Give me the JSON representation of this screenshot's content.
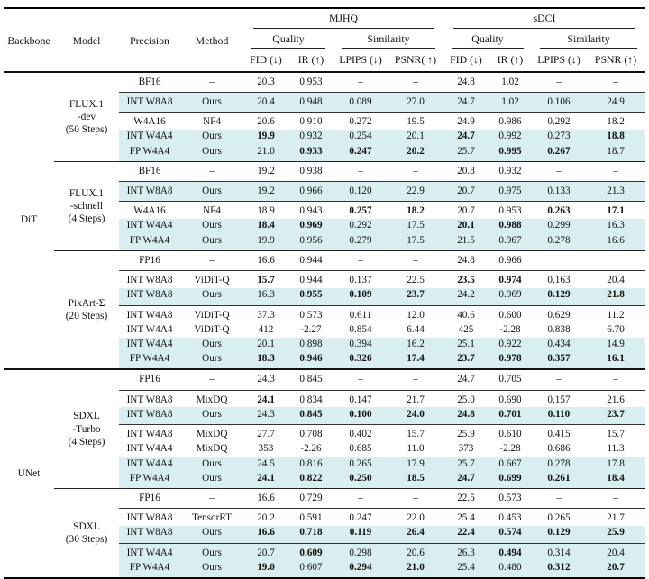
{
  "colors": {
    "row_highlight": "#d9eef0",
    "rule": "#111111",
    "text": "#111111"
  },
  "table": {
    "headers": {
      "backbone": "Backbone",
      "model": "Model",
      "precision": "Precision",
      "method": "Method",
      "group1": "MJHQ",
      "group2": "sDCI",
      "quality": "Quality",
      "similarity": "Similarity",
      "mjhq_metrics": [
        "FID (↓)",
        "IR (↑)",
        "LPIPS (↓)",
        "PSNR( ↑)"
      ],
      "sdci_metrics": [
        "FID (↓)",
        "IR (↑)",
        "LPIPS (↓)",
        "PSNR (↑)"
      ]
    },
    "sections": [
      {
        "backbone": "DiT",
        "models": [
          {
            "name_lines": [
              "FLUX.1",
              "-dev",
              "(50 Steps)"
            ],
            "groups": [
              [
                {
                  "precision": "BF16",
                  "method": "–",
                  "v": [
                    "20.3",
                    "0.953",
                    "–",
                    "–",
                    "24.8",
                    "1.02",
                    "–",
                    "–"
                  ],
                  "b": [],
                  "hl": false
                }
              ],
              [
                {
                  "precision": "INT W8A8",
                  "method": "Ours",
                  "v": [
                    "20.4",
                    "0.948",
                    "0.089",
                    "27.0",
                    "24.7",
                    "1.02",
                    "0.106",
                    "24.9"
                  ],
                  "b": [],
                  "hl": true
                }
              ],
              [
                {
                  "precision": "W4A16",
                  "method": "NF4",
                  "v": [
                    "20.6",
                    "0.910",
                    "0.272",
                    "19.5",
                    "24.9",
                    "0.986",
                    "0.292",
                    "18.2"
                  ],
                  "b": [],
                  "hl": false
                },
                {
                  "precision": "INT W4A4",
                  "method": "Ours",
                  "v": [
                    "19.9",
                    "0.932",
                    "0.254",
                    "20.1",
                    "24.7",
                    "0.992",
                    "0.273",
                    "18.8"
                  ],
                  "b": [
                    0,
                    4,
                    7
                  ],
                  "hl": true
                },
                {
                  "precision": "FP W4A4",
                  "method": "Ours",
                  "v": [
                    "21.0",
                    "0.933",
                    "0.247",
                    "20.2",
                    "25.7",
                    "0.995",
                    "0.267",
                    "18.7"
                  ],
                  "b": [
                    1,
                    2,
                    3,
                    5,
                    6
                  ],
                  "hl": true
                }
              ]
            ]
          },
          {
            "name_lines": [
              "FLUX.1",
              "-schnell",
              "(4 Steps)"
            ],
            "groups": [
              [
                {
                  "precision": "BF16",
                  "method": "–",
                  "v": [
                    "19.2",
                    "0.938",
                    "–",
                    "–",
                    "20.8",
                    "0.932",
                    "–",
                    "–"
                  ],
                  "b": [],
                  "hl": false
                }
              ],
              [
                {
                  "precision": "INT W8A8",
                  "method": "Ours",
                  "v": [
                    "19.2",
                    "0.966",
                    "0.120",
                    "22.9",
                    "20.7",
                    "0.975",
                    "0.133",
                    "21.3"
                  ],
                  "b": [],
                  "hl": true
                }
              ],
              [
                {
                  "precision": "W4A16",
                  "method": "NF4",
                  "v": [
                    "18.9",
                    "0.943",
                    "0.257",
                    "18.2",
                    "20.7",
                    "0.953",
                    "0.263",
                    "17.1"
                  ],
                  "b": [
                    2,
                    3,
                    6,
                    7
                  ],
                  "hl": false
                },
                {
                  "precision": "INT W4A4",
                  "method": "Ours",
                  "v": [
                    "18.4",
                    "0.969",
                    "0.292",
                    "17.5",
                    "20.1",
                    "0.988",
                    "0.299",
                    "16.3"
                  ],
                  "b": [
                    0,
                    1,
                    4,
                    5
                  ],
                  "hl": true
                },
                {
                  "precision": "FP W4A4",
                  "method": "Ours",
                  "v": [
                    "19.9",
                    "0.956",
                    "0.279",
                    "17.5",
                    "21.5",
                    "0.967",
                    "0.278",
                    "16.6"
                  ],
                  "b": [],
                  "hl": true
                }
              ]
            ]
          },
          {
            "name_lines": [
              "PixArt-Σ",
              "(20 Steps)"
            ],
            "groups": [
              [
                {
                  "precision": "FP16",
                  "method": "–",
                  "v": [
                    "16.6",
                    "0.944",
                    "–",
                    "–",
                    "24.8",
                    "0.966",
                    "",
                    ""
                  ],
                  "b": [],
                  "hl": false
                }
              ],
              [
                {
                  "precision": "INT W8A8",
                  "method": "ViDiT-Q",
                  "v": [
                    "15.7",
                    "0.944",
                    "0.137",
                    "22.5",
                    "23.5",
                    "0.974",
                    "0.163",
                    "20.4"
                  ],
                  "b": [
                    0,
                    4,
                    5
                  ],
                  "hl": false
                },
                {
                  "precision": "INT W8A8",
                  "method": "Ours",
                  "v": [
                    "16.3",
                    "0.955",
                    "0.109",
                    "23.7",
                    "24.2",
                    "0.969",
                    "0.129",
                    "21.8"
                  ],
                  "b": [
                    1,
                    2,
                    3,
                    6,
                    7
                  ],
                  "hl": true
                }
              ],
              [
                {
                  "precision": "INT W4A8",
                  "method": "ViDiT-Q",
                  "v": [
                    "37.3",
                    "0.573",
                    "0.611",
                    "12.0",
                    "40.6",
                    "0.600",
                    "0.629",
                    "11.2"
                  ],
                  "b": [],
                  "hl": false
                },
                {
                  "precision": "INT W4A4",
                  "method": "ViDiT-Q",
                  "v": [
                    "412",
                    "-2.27",
                    "0.854",
                    "6.44",
                    "425",
                    "-2.28",
                    "0.838",
                    "6.70"
                  ],
                  "b": [],
                  "hl": false
                },
                {
                  "precision": "INT W4A4",
                  "method": "Ours",
                  "v": [
                    "20.1",
                    "0.898",
                    "0.394",
                    "16.2",
                    "25.1",
                    "0.922",
                    "0.434",
                    "14.9"
                  ],
                  "b": [],
                  "hl": true
                },
                {
                  "precision": "FP W4A4",
                  "method": "Ours",
                  "v": [
                    "18.3",
                    "0.946",
                    "0.326",
                    "17.4",
                    "23.7",
                    "0.978",
                    "0.357",
                    "16.1"
                  ],
                  "b": [
                    0,
                    1,
                    2,
                    3,
                    4,
                    5,
                    6,
                    7
                  ],
                  "hl": true
                }
              ]
            ]
          }
        ]
      },
      {
        "backbone": "UNet",
        "models": [
          {
            "name_lines": [
              "SDXL",
              "-Turbo",
              "(4 Steps)"
            ],
            "groups": [
              [
                {
                  "precision": "FP16",
                  "method": "–",
                  "v": [
                    "24.3",
                    "0.845",
                    "–",
                    "–",
                    "24.7",
                    "0.705",
                    "–",
                    "–"
                  ],
                  "b": [],
                  "hl": false
                }
              ],
              [
                {
                  "precision": "INT W8A8",
                  "method": "MixDQ",
                  "v": [
                    "24.1",
                    "0.834",
                    "0.147",
                    "21.7",
                    "25.0",
                    "0.690",
                    "0.157",
                    "21.6"
                  ],
                  "b": [
                    0
                  ],
                  "hl": false
                },
                {
                  "precision": "INT W8A8",
                  "method": "Ours",
                  "v": [
                    "24.3",
                    "0.845",
                    "0.100",
                    "24.0",
                    "24.8",
                    "0.701",
                    "0.110",
                    "23.7"
                  ],
                  "b": [
                    1,
                    2,
                    3,
                    4,
                    5,
                    6,
                    7
                  ],
                  "hl": true
                }
              ],
              [
                {
                  "precision": "INT W4A8",
                  "method": "MixDQ",
                  "v": [
                    "27.7",
                    "0.708",
                    "0.402",
                    "15.7",
                    "25.9",
                    "0.610",
                    "0.415",
                    "15.7"
                  ],
                  "b": [],
                  "hl": false
                },
                {
                  "precision": "INT W4A4",
                  "method": "MixDQ",
                  "v": [
                    "353",
                    "-2.26",
                    "0.685",
                    "11.0",
                    "373",
                    "-2.28",
                    "0.686",
                    "11.3"
                  ],
                  "b": [],
                  "hl": false
                },
                {
                  "precision": "INT W4A4",
                  "method": "Ours",
                  "v": [
                    "24.5",
                    "0.816",
                    "0.265",
                    "17.9",
                    "25.7",
                    "0.667",
                    "0.278",
                    "17.8"
                  ],
                  "b": [],
                  "hl": true
                },
                {
                  "precision": "FP W4A4",
                  "method": "Ours",
                  "v": [
                    "24.1",
                    "0.822",
                    "0.250",
                    "18.5",
                    "24.7",
                    "0.699",
                    "0.261",
                    "18.4"
                  ],
                  "b": [
                    0,
                    1,
                    2,
                    3,
                    4,
                    5,
                    6,
                    7
                  ],
                  "hl": true
                }
              ]
            ]
          },
          {
            "name_lines": [
              "SDXL",
              "(30 Steps)"
            ],
            "groups": [
              [
                {
                  "precision": "FP16",
                  "method": "–",
                  "v": [
                    "16.6",
                    "0.729",
                    "–",
                    "–",
                    "22.5",
                    "0.573",
                    "–",
                    "–"
                  ],
                  "b": [],
                  "hl": false
                }
              ],
              [
                {
                  "precision": "INT W8A8",
                  "method": "TensorRT",
                  "v": [
                    "20.2",
                    "0.591",
                    "0.247",
                    "22.0",
                    "25.4",
                    "0.453",
                    "0.265",
                    "21.7"
                  ],
                  "b": [],
                  "hl": false
                },
                {
                  "precision": "INT W8A8",
                  "method": "Ours",
                  "v": [
                    "16.6",
                    "0.718",
                    "0.119",
                    "26.4",
                    "22.4",
                    "0.574",
                    "0.129",
                    "25.9"
                  ],
                  "b": [
                    0,
                    1,
                    2,
                    3,
                    4,
                    5,
                    6,
                    7
                  ],
                  "hl": true
                }
              ],
              [
                {
                  "precision": "INT W4A4",
                  "method": "Ours",
                  "v": [
                    "20.7",
                    "0.609",
                    "0.298",
                    "20.6",
                    "26.3",
                    "0.494",
                    "0.314",
                    "20.4"
                  ],
                  "b": [
                    1,
                    5
                  ],
                  "hl": true
                },
                {
                  "precision": "FP W4A4",
                  "method": "Ours",
                  "v": [
                    "19.0",
                    "0.607",
                    "0.294",
                    "21.0",
                    "25.4",
                    "0.480",
                    "0.312",
                    "20.7"
                  ],
                  "b": [
                    0,
                    2,
                    3,
                    6,
                    7
                  ],
                  "hl": true
                }
              ]
            ]
          }
        ]
      }
    ]
  }
}
